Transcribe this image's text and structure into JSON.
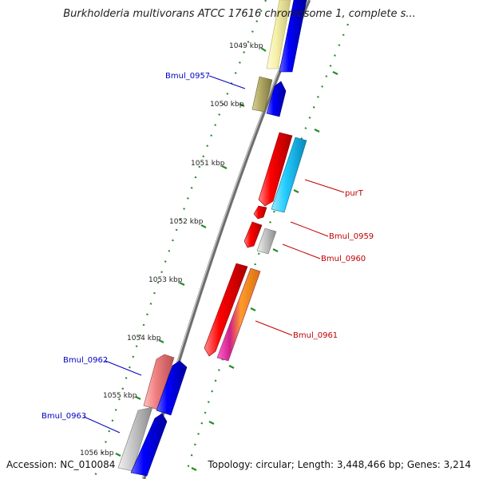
{
  "title": "Burkholderia multivorans ATCC 17616 chromosome 1, complete s...",
  "footer": {
    "accession": "Accession: NC_010084",
    "topology": "Topology: circular; Length: 3,448,466 bp; Genes: 3,214"
  },
  "ticks": [
    "1049 kbp",
    "1050 kbp",
    "1051 kbp",
    "1052 kbp",
    "1053 kbp",
    "1054 kbp",
    "1055 kbp",
    "1056 kbp"
  ],
  "gene_labels": [
    "Bmul_0957",
    "purT",
    "Bmul_0959",
    "Bmul_0960",
    "Bmul_0961",
    "Bmul_0962",
    "Bmul_0963"
  ],
  "colors": {
    "backbone": "#8c8c8c",
    "tick_dots": "#2a8a2a",
    "forward_label": "#0000c0",
    "reverse_label": "#c00000",
    "red_gene": "#ff0000",
    "blue_gene": "#0000ff",
    "cyan_gene": "#22ccff",
    "yellow_gene": "#f5f0a8",
    "olive_gene": "#b8b070",
    "pink_gene": "#f08080",
    "gray_gene": "#c8c8c8"
  }
}
